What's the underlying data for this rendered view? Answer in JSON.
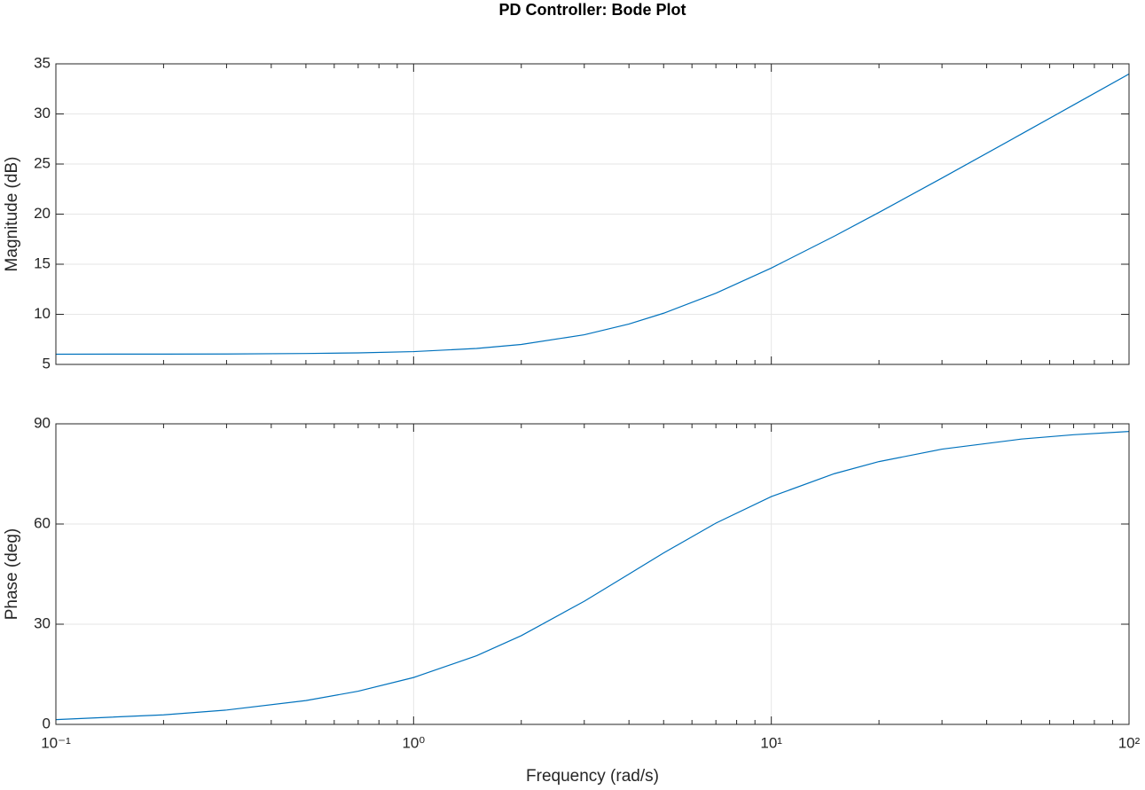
{
  "chart_data": [
    {
      "type": "line",
      "title": "PD Controller: Bode Plot",
      "ylabel": "Magnitude (dB)",
      "log_x": true,
      "grid": true,
      "xlim": [
        0.1,
        100
      ],
      "ylim": [
        5,
        35
      ],
      "yticks": [
        5,
        10,
        15,
        20,
        25,
        30,
        35
      ],
      "x": [
        0.1,
        0.2,
        0.3,
        0.5,
        0.7,
        1,
        1.5,
        2,
        3,
        4,
        5,
        7,
        10,
        15,
        20,
        30,
        50,
        70,
        100
      ],
      "series": [
        {
          "name": "Magnitude",
          "color": "#0072bd",
          "values": [
            6.02,
            6.03,
            6.04,
            6.09,
            6.15,
            6.28,
            6.59,
            6.99,
            7.96,
            9.03,
            10.11,
            12.11,
            14.62,
            17.8,
            20.17,
            23.6,
            27.99,
            30.9,
            33.99
          ]
        }
      ]
    },
    {
      "type": "line",
      "ylabel": "Phase (deg)",
      "xlabel": "Frequency (rad/s)",
      "log_x": true,
      "grid": true,
      "xlim": [
        0.1,
        100
      ],
      "xticks": [
        {
          "value": 0.1,
          "label": "10⁻¹"
        },
        {
          "value": 1,
          "label": "10⁰"
        },
        {
          "value": 10,
          "label": "10¹"
        },
        {
          "value": 100,
          "label": "10²"
        }
      ],
      "ylim": [
        0,
        90
      ],
      "yticks": [
        0,
        30,
        60,
        90
      ],
      "x": [
        0.1,
        0.2,
        0.3,
        0.5,
        0.7,
        1,
        1.5,
        2,
        3,
        4,
        5,
        7,
        10,
        15,
        20,
        30,
        50,
        70,
        100
      ],
      "series": [
        {
          "name": "Phase",
          "color": "#0072bd",
          "values": [
            1.43,
            2.86,
            4.29,
            7.13,
            9.93,
            14.04,
            20.56,
            26.57,
            36.87,
            45,
            51.34,
            60.26,
            68.2,
            75.07,
            78.69,
            82.41,
            85.43,
            86.73,
            87.71
          ]
        }
      ]
    }
  ]
}
